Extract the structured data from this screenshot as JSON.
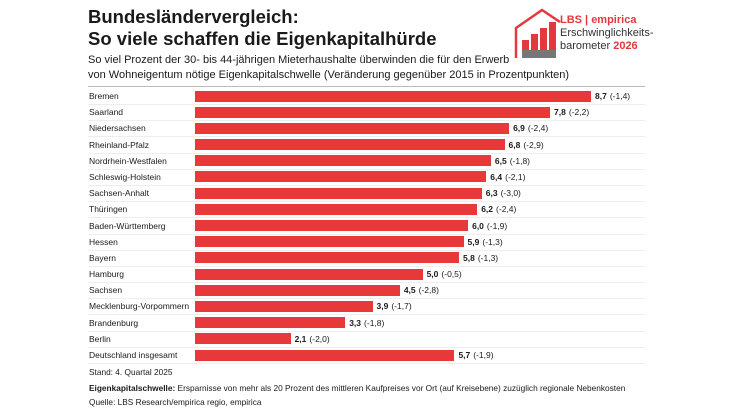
{
  "header": {
    "title_line1": "Bundesländervergleich:",
    "title_line2": "So viele schaffen die Eigenkapitalhürde",
    "subtitle_line1": "So viel Prozent der 30- bis 44-jährigen Mieterhaushalte überwinden die für den Erwerb",
    "subtitle_line2": "von Wohneigentum nötige Eigenkapitalschwelle (Veränderung gegenüber 2015 in Prozentpunkten)"
  },
  "logo": {
    "brand": "LBS | empirica",
    "line1": "Erschwinglichkeits-",
    "line2": "barometer",
    "year": "2026"
  },
  "chart_data": {
    "type": "bar",
    "orientation": "horizontal",
    "color": "#e8393a",
    "xlim": [
      0,
      8.7
    ],
    "categories": [
      "Bremen",
      "Saarland",
      "Niedersachsen",
      "Rheinland-Pfalz",
      "Nordrhein-Westfalen",
      "Schleswig-Holstein",
      "Sachsen-Anhalt",
      "Thüringen",
      "Baden-Württemberg",
      "Hessen",
      "Bayern",
      "Hamburg",
      "Sachsen",
      "Mecklenburg-Vorpommern",
      "Brandenburg",
      "Berlin",
      "Deutschland insgesamt"
    ],
    "values": [
      8.7,
      7.8,
      6.9,
      6.8,
      6.5,
      6.4,
      6.3,
      6.2,
      6.0,
      5.9,
      5.8,
      5.0,
      4.5,
      3.9,
      3.3,
      2.1,
      5.7
    ],
    "value_labels": [
      "8,7",
      "7,8",
      "6,9",
      "6,8",
      "6,5",
      "6,4",
      "6,3",
      "6,2",
      "6,0",
      "5,9",
      "5,8",
      "5,0",
      "4,5",
      "3,9",
      "3,3",
      "2,1",
      "5,7"
    ],
    "change_labels": [
      "(-1,4)",
      "(-2,2)",
      "(-2,4)",
      "(-2,9)",
      "(-1,8)",
      "(-2,1)",
      "(-3,0)",
      "(-2,4)",
      "(-1,9)",
      "(-1,3)",
      "(-1,3)",
      "(-0,5)",
      "(-2,8)",
      "(-1,7)",
      "(-1,8)",
      "(-2,0)",
      "(-1,9)"
    ]
  },
  "footer": {
    "stand": "Stand: 4. Quartal 2025",
    "def_label": "Eigenkapitalschwelle:",
    "def_text": " Ersparnisse von mehr als 20 Prozent des mittleren Kaufpreises vor Ort (auf Kreisebene) zuzüglich regionale Nebenkosten",
    "source": "Quelle: LBS Research/empirica regio, empirica"
  }
}
